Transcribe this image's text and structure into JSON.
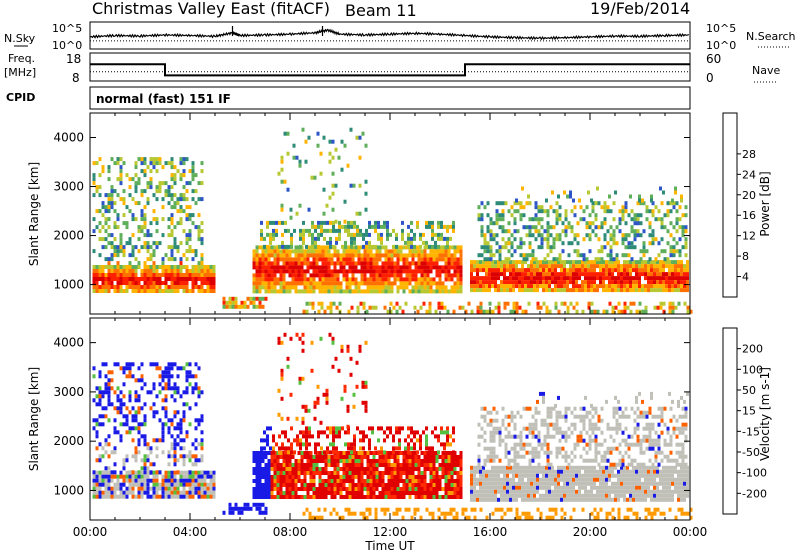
{
  "header": {
    "title": "Christmas Valley East (fitACF)",
    "beam": "Beam 11",
    "date": "19/Feb/2014"
  },
  "chart_data": [
    {
      "type": "line",
      "panel": "noise",
      "left_label": "N.Sky",
      "right_label": "N.Search",
      "left_ticks": [
        "10^5",
        "10^0"
      ],
      "right_ticks": [
        "10^5",
        "10^0"
      ],
      "x_range_hours": [
        0,
        24
      ],
      "series": [
        {
          "name": "N.Sky",
          "style": "solid",
          "x": [
            0,
            1,
            2,
            3,
            4,
            5,
            5.7,
            6,
            7,
            8,
            9,
            9.5,
            10,
            11,
            12,
            13,
            14,
            15,
            16,
            17,
            18,
            19,
            20,
            21,
            22,
            23,
            24
          ],
          "y": [
            0.45,
            0.5,
            0.48,
            0.52,
            0.5,
            0.47,
            0.6,
            0.5,
            0.52,
            0.55,
            0.6,
            0.7,
            0.55,
            0.52,
            0.55,
            0.58,
            0.55,
            0.5,
            0.45,
            0.42,
            0.4,
            0.42,
            0.45,
            0.48,
            0.47,
            0.5,
            0.52
          ]
        },
        {
          "name": "N.Search",
          "style": "dotted",
          "x": [
            0,
            24
          ],
          "y": [
            0.3,
            0.3
          ]
        }
      ]
    },
    {
      "type": "line",
      "panel": "frequency",
      "left_label": "Freq. [MHz]",
      "right_label": "Nave",
      "left_ticks": [
        "18",
        "8"
      ],
      "right_ticks": [
        "60",
        "0"
      ],
      "x_range_hours": [
        0,
        24
      ],
      "series": [
        {
          "name": "Freq.",
          "style": "solid",
          "x": [
            0,
            3,
            3,
            15,
            15,
            24
          ],
          "y": [
            14,
            14,
            10,
            10,
            14,
            14
          ],
          "ylim": [
            8,
            18
          ]
        },
        {
          "name": "Nave",
          "style": "dotted",
          "x": [
            0,
            24
          ],
          "y": [
            20,
            20
          ],
          "ylim": [
            0,
            60
          ]
        }
      ]
    },
    {
      "type": "table",
      "panel": "cpid",
      "label": "CPID",
      "value": "normal (fast) 151 IF"
    },
    {
      "type": "heatmap",
      "panel": "power",
      "ylabel": "Slant Range [km]",
      "ylim": [
        400,
        4500
      ],
      "yticks": [
        1000,
        2000,
        3000,
        4000
      ],
      "x_range_hours": [
        0,
        24
      ],
      "colorbar": {
        "label": "Power [dB]",
        "ticks": [
          "4",
          "8",
          "12",
          "16",
          "20",
          "24",
          "28"
        ],
        "colors": [
          "#1a1aff",
          "#2d55c8",
          "#2e8b78",
          "#5fae5a",
          "#b8c832",
          "#ffb400",
          "#ff7000",
          "#ff2000",
          "#dd0000"
        ]
      }
    },
    {
      "type": "heatmap",
      "panel": "velocity",
      "ylabel": "Slant Range [km]",
      "ylim": [
        400,
        4500
      ],
      "yticks": [
        1000,
        2000,
        3000,
        4000
      ],
      "x_range_hours": [
        0,
        24
      ],
      "colorbar": {
        "label": "Velocity [m s-1]",
        "ticks": [
          "200",
          "100",
          "50",
          "15",
          "-15",
          "-50",
          "-100",
          "-200"
        ],
        "colors": [
          "#1a1ae6",
          "#2a6ad0",
          "#2e8b6e",
          "#55c040",
          "#c0c0b8",
          "#c0c0b8",
          "#ff9a00",
          "#ff6000",
          "#ff2a00",
          "#e00000"
        ]
      }
    }
  ],
  "xaxis": {
    "label": "Time UT",
    "ticks": [
      "00:00",
      "04:00",
      "08:00",
      "12:00",
      "16:00",
      "20:00",
      "00:00"
    ]
  }
}
